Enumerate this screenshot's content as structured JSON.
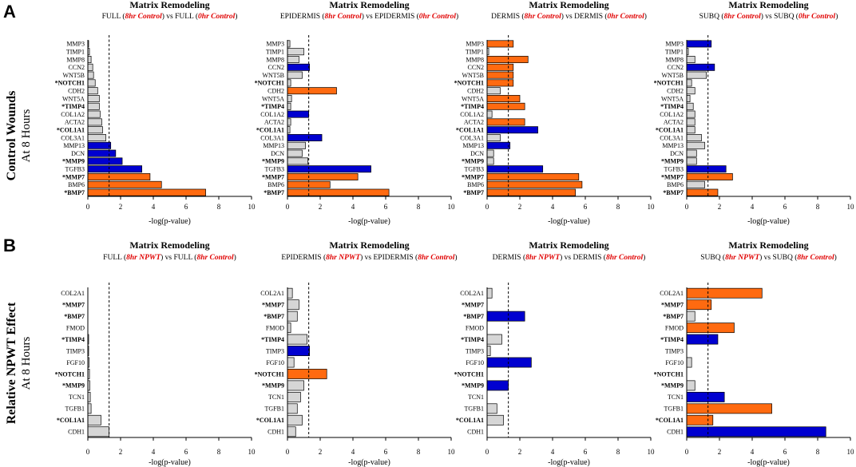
{
  "panels": [
    {
      "letter": "A",
      "row_title": "Control Wounds",
      "row_subtitle": "At 8 Hours",
      "charts": [
        {
          "title": "Matrix Remodeling",
          "sub_pre": "FULL (",
          "sub_a": "8hr Control",
          "sub_mid": ") vs FULL (",
          "sub_b": "0hr Control",
          "sub_post": ")"
        },
        {
          "title": "Matrix Remodeling",
          "sub_pre": "EPIDERMIS (",
          "sub_a": "8hr Control",
          "sub_mid": ") vs EPIDERMIS (",
          "sub_b": "0hr Control",
          "sub_post": ")"
        },
        {
          "title": "Matrix Remodeling",
          "sub_pre": "DERMIS (",
          "sub_a": "8hr Control",
          "sub_mid": ") vs DERMIS (",
          "sub_b": "0hr Control",
          "sub_post": ")"
        },
        {
          "title": "Matrix Remodeling",
          "sub_pre": "SUBQ (",
          "sub_a": "8hr Control",
          "sub_mid": ") vs SUBQ (",
          "sub_b": "0hr Control",
          "sub_post": ")"
        }
      ]
    },
    {
      "letter": "B",
      "row_title": "Relative NPWT Effect",
      "row_subtitle": "At 8 Hours",
      "charts": [
        {
          "title": "Matrix Remodeling",
          "sub_pre": "FULL (",
          "sub_a": "8hr NPWT",
          "sub_mid": ") vs FULL (",
          "sub_b": "8hr Control",
          "sub_post": ")"
        },
        {
          "title": "Matrix Remodeling",
          "sub_pre": "EPIDERMIS (",
          "sub_a": "8hr NPWT",
          "sub_mid": ") vs EPIDERMIS (",
          "sub_b": "8hr Control",
          "sub_post": ")"
        },
        {
          "title": "Matrix Remodeling",
          "sub_pre": "DERMIS (",
          "sub_a": "8hr NPWT",
          "sub_mid": ") vs DERMIS (",
          "sub_b": "8hr Control",
          "sub_post": ")"
        },
        {
          "title": "Matrix Remodeling",
          "sub_pre": "SUBQ (",
          "sub_a": "8hr NPWT",
          "sub_mid": ") vs SUBQ (",
          "sub_b": "8hr Control",
          "sub_post": ")"
        }
      ]
    }
  ],
  "colors": {
    "up": "#ff6a10",
    "down": "#0000d0",
    "ns": "#d6d6d6",
    "stroke": "#000000",
    "subtitle_accent": "#e00000"
  },
  "chart_data": [
    {
      "type": "bar",
      "orientation": "horizontal",
      "panel": "A",
      "title": "Matrix Remodeling",
      "subtitle": "FULL (8hr Control) vs FULL (0hr Control)",
      "xlabel": "-log(p-value)",
      "xlim": [
        0,
        10
      ],
      "xticks": [
        0,
        2,
        4,
        6,
        8,
        10
      ],
      "threshold": 1.3,
      "categories": [
        "MMP3",
        "TIMP1",
        "MMP8",
        "CCN2",
        "WNT5B",
        "*NOTCH1",
        "CDH2",
        "WNT5A",
        "*TIMP4",
        "COL1A2",
        "ACTA2",
        "*COL1A1",
        "COL3A1",
        "MMP13",
        "DCN",
        "*MMP9",
        "TGFB3",
        "*MMP7",
        "BMP6",
        "*BMP7"
      ],
      "bold": [
        false,
        false,
        false,
        false,
        false,
        true,
        false,
        false,
        true,
        false,
        false,
        true,
        false,
        false,
        false,
        true,
        false,
        true,
        false,
        true
      ],
      "values": [
        0.05,
        0.1,
        0.2,
        0.3,
        0.35,
        0.45,
        0.6,
        0.7,
        0.7,
        0.75,
        0.85,
        0.9,
        1.1,
        1.4,
        1.7,
        2.1,
        3.3,
        3.8,
        4.5,
        7.2
      ],
      "states": [
        "ns",
        "ns",
        "ns",
        "ns",
        "ns",
        "ns",
        "ns",
        "ns",
        "ns",
        "ns",
        "ns",
        "ns",
        "ns",
        "down",
        "down",
        "down",
        "down",
        "up",
        "up",
        "up"
      ]
    },
    {
      "type": "bar",
      "orientation": "horizontal",
      "panel": "A",
      "title": "Matrix Remodeling",
      "subtitle": "EPIDERMIS (8hr Control) vs EPIDERMIS (0hr Control)",
      "xlabel": "-log(p-value)",
      "xlim": [
        0,
        10
      ],
      "xticks": [
        0,
        2,
        4,
        6,
        8,
        10
      ],
      "threshold": 1.3,
      "categories": [
        "MMP3",
        "TIMP1",
        "MMP8",
        "CCN2",
        "WNT5B",
        "*NOTCH1",
        "CDH2",
        "WNT5A",
        "*TIMP4",
        "COL1A2",
        "ACTA2",
        "*COL1A1",
        "COL3A1",
        "MMP13",
        "DCN",
        "*MMP9",
        "TGFB3",
        "*MMP7",
        "BMP6",
        "*BMP7"
      ],
      "bold": [
        false,
        false,
        false,
        false,
        false,
        true,
        false,
        false,
        true,
        false,
        false,
        true,
        false,
        false,
        false,
        true,
        false,
        true,
        false,
        true
      ],
      "values": [
        0.15,
        1.0,
        0.7,
        1.35,
        0.9,
        0.2,
        3.0,
        0.25,
        0.2,
        1.3,
        0.2,
        0.15,
        2.1,
        1.1,
        0.9,
        1.25,
        5.1,
        4.3,
        2.6,
        6.2
      ],
      "states": [
        "ns",
        "ns",
        "ns",
        "down",
        "ns",
        "ns",
        "up",
        "ns",
        "ns",
        "down",
        "ns",
        "ns",
        "down",
        "ns",
        "ns",
        "ns",
        "down",
        "up",
        "up",
        "up"
      ]
    },
    {
      "type": "bar",
      "orientation": "horizontal",
      "panel": "A",
      "title": "Matrix Remodeling",
      "subtitle": "DERMIS (8hr Control) vs DERMIS (0hr Control)",
      "xlabel": "-log(p-value)",
      "xlim": [
        0,
        10
      ],
      "xticks": [
        0,
        2,
        4,
        6,
        8,
        10
      ],
      "threshold": 1.3,
      "categories": [
        "MMP3",
        "TIMP1",
        "MMP8",
        "CCN2",
        "WNT5B",
        "*NOTCH1",
        "CDH2",
        "WNT5A",
        "*TIMP4",
        "COL1A2",
        "ACTA2",
        "*COL1A1",
        "COL3A1",
        "MMP13",
        "DCN",
        "*MMP9",
        "TGFB3",
        "*MMP7",
        "BMP6",
        "*BMP7"
      ],
      "bold": [
        false,
        false,
        false,
        false,
        false,
        true,
        false,
        false,
        true,
        false,
        false,
        true,
        false,
        false,
        false,
        true,
        false,
        true,
        false,
        true
      ],
      "values": [
        1.6,
        0.1,
        2.5,
        1.6,
        1.6,
        1.6,
        0.8,
        2.0,
        2.3,
        0.3,
        2.3,
        3.1,
        0.8,
        1.4,
        0.4,
        0.4,
        3.4,
        5.6,
        5.8,
        5.4
      ],
      "states": [
        "up",
        "ns",
        "up",
        "up",
        "up",
        "up",
        "ns",
        "up",
        "up",
        "ns",
        "up",
        "down",
        "ns",
        "down",
        "ns",
        "ns",
        "down",
        "up",
        "up",
        "up"
      ]
    },
    {
      "type": "bar",
      "orientation": "horizontal",
      "panel": "A",
      "title": "Matrix Remodeling",
      "subtitle": "SUBQ (8hr Control) vs SUBQ (0hr Control)",
      "xlabel": "-log(p-value)",
      "xlim": [
        0,
        10
      ],
      "xticks": [
        0,
        2,
        4,
        6,
        8,
        10
      ],
      "threshold": 1.3,
      "categories": [
        "MMP3",
        "TIMP1",
        "MMP8",
        "CCN2",
        "WNT5B",
        "*NOTCH1",
        "CDH2",
        "WNT5A",
        "*TIMP4",
        "COL1A2",
        "ACTA2",
        "*COL1A1",
        "COL3A1",
        "MMP13",
        "DCN",
        "*MMP9",
        "TGFB3",
        "*MMP7",
        "BMP6",
        "*BMP7"
      ],
      "bold": [
        false,
        false,
        false,
        false,
        false,
        true,
        false,
        false,
        true,
        false,
        false,
        true,
        false,
        false,
        false,
        true,
        false,
        true,
        false,
        true
      ],
      "values": [
        1.5,
        0.1,
        0.5,
        1.7,
        1.2,
        0.3,
        0.5,
        0.2,
        0.4,
        0.5,
        0.5,
        0.5,
        0.9,
        1.1,
        0.6,
        0.6,
        2.4,
        2.8,
        1.1,
        1.9
      ],
      "states": [
        "down",
        "ns",
        "ns",
        "down",
        "ns",
        "ns",
        "ns",
        "ns",
        "ns",
        "ns",
        "ns",
        "ns",
        "ns",
        "ns",
        "ns",
        "ns",
        "down",
        "up",
        "ns",
        "up"
      ]
    },
    {
      "type": "bar",
      "orientation": "horizontal",
      "panel": "B",
      "title": "Matrix Remodeling",
      "subtitle": "FULL (8hr NPWT) vs FULL (8hr Control)",
      "xlabel": "-log(p-value)",
      "xlim": [
        0,
        10
      ],
      "xticks": [
        0,
        2,
        4,
        6,
        8,
        10
      ],
      "threshold": 1.3,
      "categories": [
        "COL2A1",
        "*MMP7",
        "*BMP7",
        "FMOD",
        "*TIMP4",
        "TIMP3",
        "FGF10",
        "*NOTCH1",
        "*MMP9",
        "TCN1",
        "TGFB1",
        "*COL1A1",
        "CDH1"
      ],
      "bold": [
        false,
        true,
        true,
        false,
        true,
        false,
        false,
        true,
        true,
        false,
        false,
        true,
        false
      ],
      "values": [
        0.0,
        0.0,
        0.0,
        0.0,
        0.05,
        0.05,
        0.08,
        0.1,
        0.12,
        0.15,
        0.2,
        0.8,
        1.3
      ],
      "states": [
        "ns",
        "ns",
        "ns",
        "ns",
        "ns",
        "ns",
        "ns",
        "ns",
        "ns",
        "ns",
        "ns",
        "ns",
        "ns"
      ]
    },
    {
      "type": "bar",
      "orientation": "horizontal",
      "panel": "B",
      "title": "Matrix Remodeling",
      "subtitle": "EPIDERMIS (8hr NPWT) vs EPIDERMIS (8hr Control)",
      "xlabel": "-log(p-value)",
      "xlim": [
        0,
        10
      ],
      "xticks": [
        0,
        2,
        4,
        6,
        8,
        10
      ],
      "threshold": 1.3,
      "categories": [
        "COL2A1",
        "*MMP7",
        "*BMP7",
        "FMOD",
        "*TIMP4",
        "TIMP3",
        "FGF10",
        "*NOTCH1",
        "*MMP9",
        "TCN1",
        "TGFB1",
        "*COL1A1",
        "CDH1"
      ],
      "bold": [
        false,
        true,
        true,
        false,
        true,
        false,
        false,
        true,
        true,
        false,
        false,
        true,
        false
      ],
      "values": [
        0.3,
        0.7,
        0.6,
        0.2,
        1.2,
        1.35,
        0.4,
        2.4,
        1.0,
        0.8,
        0.6,
        0.9,
        0.5
      ],
      "states": [
        "ns",
        "ns",
        "ns",
        "ns",
        "ns",
        "down",
        "ns",
        "up",
        "ns",
        "ns",
        "ns",
        "ns",
        "ns"
      ]
    },
    {
      "type": "bar",
      "orientation": "horizontal",
      "panel": "B",
      "title": "Matrix Remodeling",
      "subtitle": "DERMIS (8hr NPWT) vs DERMIS (8hr Control)",
      "xlabel": "-log(p-value)",
      "xlim": [
        0,
        10
      ],
      "xticks": [
        0,
        2,
        4,
        6,
        8,
        10
      ],
      "threshold": 1.3,
      "categories": [
        "COL2A1",
        "*MMP7",
        "*BMP7",
        "FMOD",
        "*TIMP4",
        "TIMP3",
        "FGF10",
        "*NOTCH1",
        "*MMP9",
        "TCN1",
        "TGFB1",
        "*COL1A1",
        "CDH1"
      ],
      "bold": [
        false,
        true,
        true,
        false,
        true,
        false,
        false,
        true,
        true,
        false,
        false,
        true,
        false
      ],
      "values": [
        0.3,
        0.0,
        2.3,
        0.0,
        0.9,
        0.2,
        2.7,
        0.0,
        1.3,
        0.0,
        0.6,
        1.0,
        0.0
      ],
      "states": [
        "ns",
        "ns",
        "down",
        "ns",
        "ns",
        "ns",
        "down",
        "ns",
        "down",
        "ns",
        "ns",
        "ns",
        "ns"
      ]
    },
    {
      "type": "bar",
      "orientation": "horizontal",
      "panel": "B",
      "title": "Matrix Remodeling",
      "subtitle": "SUBQ (8hr NPWT) vs SUBQ (8hr Control)",
      "xlabel": "-log(p-value)",
      "xlim": [
        0,
        10
      ],
      "xticks": [
        0,
        2,
        4,
        6,
        8,
        10
      ],
      "threshold": 1.3,
      "categories": [
        "COL2A1",
        "*MMP7",
        "*BMP7",
        "FMOD",
        "*TIMP4",
        "TIMP3",
        "FGF10",
        "*NOTCH1",
        "*MMP9",
        "TCN1",
        "TGFB1",
        "*COL1A1",
        "CDH1"
      ],
      "bold": [
        false,
        true,
        true,
        false,
        true,
        false,
        false,
        true,
        true,
        false,
        false,
        true,
        false
      ],
      "values": [
        4.6,
        1.5,
        0.5,
        2.9,
        1.9,
        0.0,
        0.3,
        0.0,
        0.5,
        2.3,
        5.2,
        1.6,
        8.5
      ],
      "states": [
        "up",
        "up",
        "ns",
        "up",
        "down",
        "ns",
        "ns",
        "ns",
        "ns",
        "down",
        "up",
        "up",
        "down"
      ]
    }
  ]
}
